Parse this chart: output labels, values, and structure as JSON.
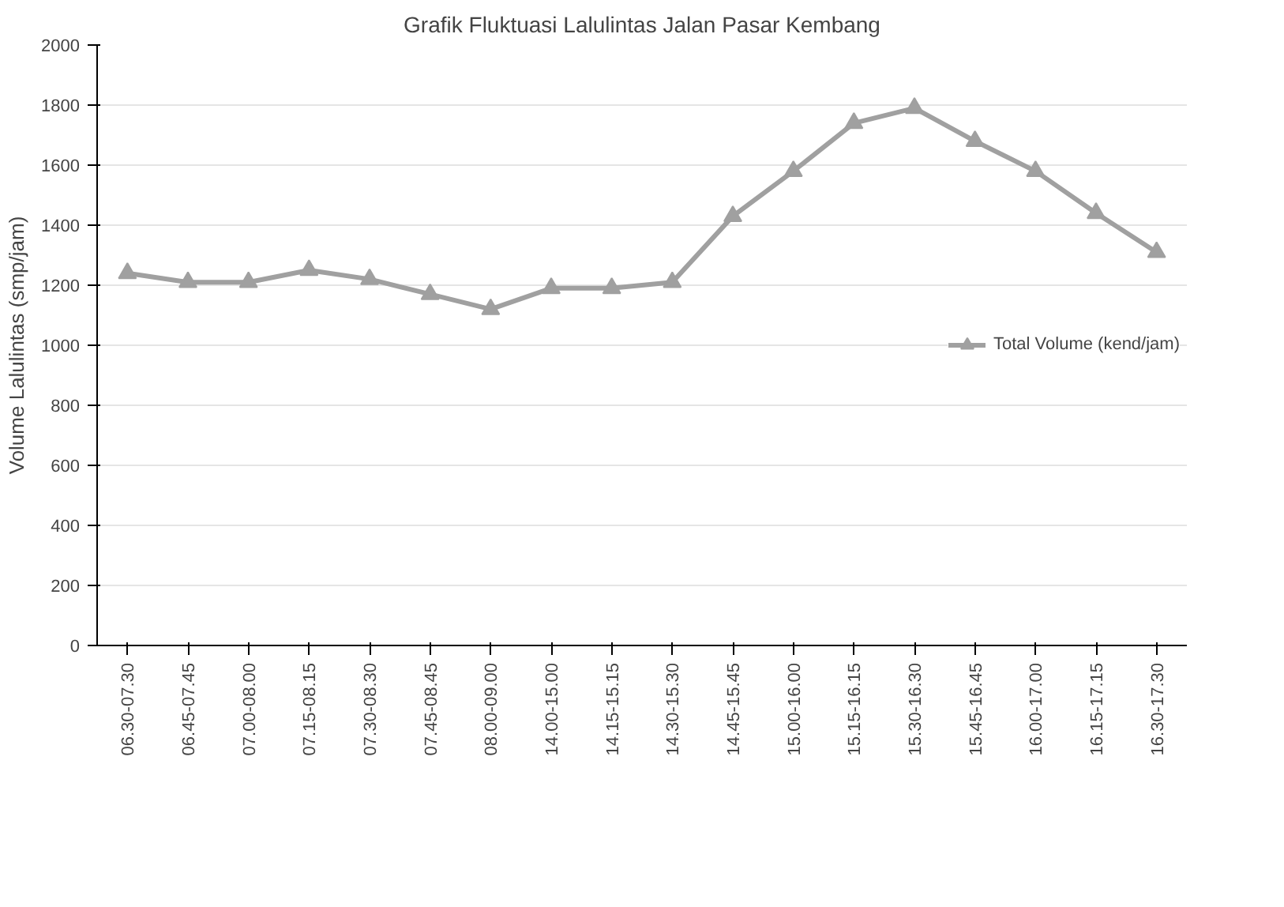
{
  "chart_data": {
    "type": "line",
    "title": "Grafik Fluktuasi Lalulintas Jalan Pasar Kembang",
    "ylabel": "Volume Lalulintas (smp/jam)",
    "categories": [
      "06.30-07.30",
      "06.45-07.45",
      "07.00-08.00",
      "07.15-08.15",
      "07.30-08.30",
      "07.45-08.45",
      "08.00-09.00",
      "14.00-15.00",
      "14.15-15.15",
      "14.30-15.30",
      "14.45-15.45",
      "15.00-16.00",
      "15.15-16.15",
      "15.30-16.30",
      "15.45-16.45",
      "16.00-17.00",
      "16.15-17.15",
      "16.30-17.30"
    ],
    "series": [
      {
        "name": "Total Volume (kend/jam)",
        "color": "#a0a0a0",
        "values": [
          1240,
          1210,
          1210,
          1250,
          1220,
          1170,
          1120,
          1190,
          1190,
          1210,
          1430,
          1580,
          1740,
          1790,
          1680,
          1580,
          1440,
          1310
        ]
      }
    ],
    "ylim": [
      0,
      2000
    ],
    "yticks": [
      0,
      200,
      400,
      600,
      800,
      1000,
      1200,
      1400,
      1600,
      1800,
      2000
    ],
    "grid": "y",
    "legend": "right",
    "marker": "triangle",
    "line_style": "solid"
  }
}
